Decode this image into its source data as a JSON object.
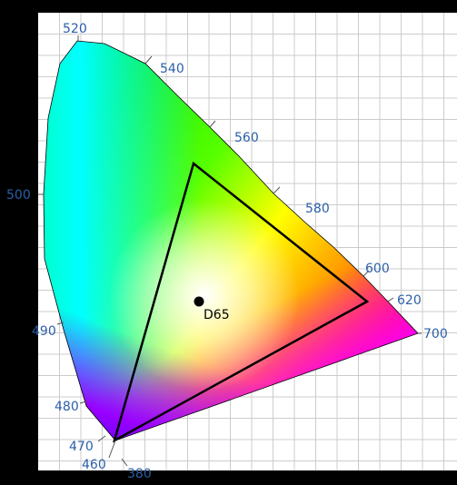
{
  "diagram": {
    "title": "",
    "wavelength_labels": [
      "520",
      "540",
      "560",
      "580",
      "600",
      "620",
      "700",
      "500",
      "490",
      "480",
      "470",
      "460",
      "380"
    ],
    "white_point": {
      "label": "D65"
    },
    "colors": {
      "background": "#000000",
      "plot_area": "#ffffff",
      "grid": "#cccccc",
      "label": "#2a5fa8",
      "outline": "#000000"
    }
  }
}
